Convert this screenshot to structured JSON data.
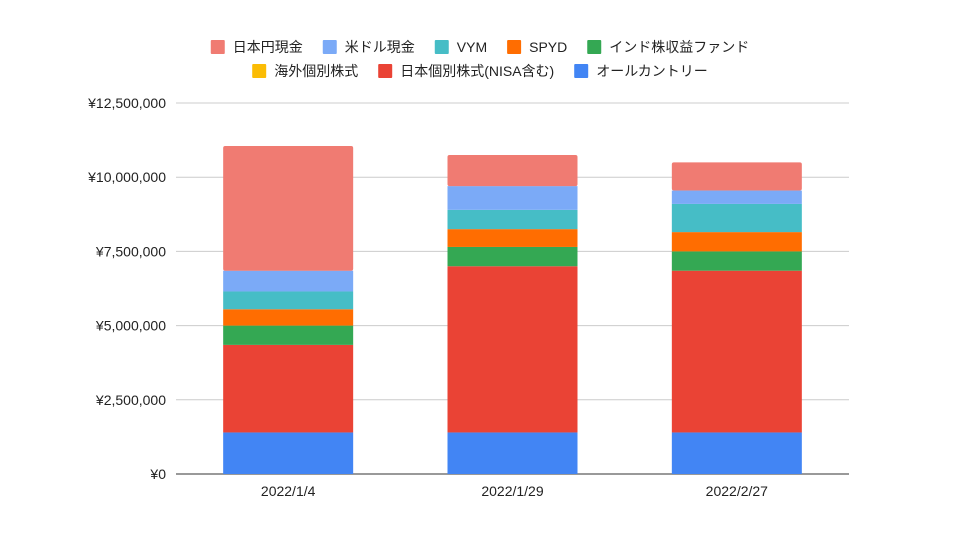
{
  "chart_data": {
    "type": "bar",
    "stacked": true,
    "categories": [
      "2022/1/4",
      "2022/1/29",
      "2022/2/27"
    ],
    "series": [
      {
        "name": "オールカントリー",
        "color": "#4285f4",
        "values": [
          1400000,
          1400000,
          1400000
        ]
      },
      {
        "name": "日本個別株式(NISA含む)",
        "color": "#ea4335",
        "values": [
          2950000,
          5600000,
          5450000
        ]
      },
      {
        "name": "海外個別株式",
        "color": "#fbbc04",
        "values": [
          0,
          0,
          0
        ]
      },
      {
        "name": "インド株収益ファンド",
        "color": "#34a853",
        "values": [
          650000,
          650000,
          650000
        ]
      },
      {
        "name": "SPYD",
        "color": "#ff6d01",
        "values": [
          550000,
          600000,
          650000
        ]
      },
      {
        "name": "VYM",
        "color": "#46bdc6",
        "values": [
          600000,
          650000,
          950000
        ]
      },
      {
        "name": "米ドル現金",
        "color": "#7baaf7",
        "values": [
          700000,
          800000,
          450000
        ]
      },
      {
        "name": "日本円現金",
        "color": "#f07b72",
        "values": [
          4200000,
          1050000,
          950000
        ]
      }
    ],
    "ylim": [
      0,
      12500000
    ],
    "yticks": [
      0,
      2500000,
      5000000,
      7500000,
      10000000,
      12500000
    ],
    "ytick_labels": [
      "¥0",
      "¥2,500,000",
      "¥5,000,000",
      "¥7,500,000",
      "¥10,000,000",
      "¥12,500,000"
    ],
    "title": "",
    "xlabel": "",
    "ylabel": "",
    "grid": true,
    "legend_position": "top",
    "legend_rows": [
      [
        "日本円現金",
        "米ドル現金",
        "VYM",
        "SPYD",
        "インド株収益ファンド"
      ],
      [
        "海外個別株式",
        "日本個別株式(NISA含む)",
        "オールカントリー"
      ]
    ]
  }
}
